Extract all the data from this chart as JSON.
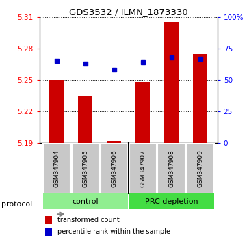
{
  "title": "GDS3532 / ILMN_1873330",
  "samples": [
    "GSM347904",
    "GSM347905",
    "GSM347906",
    "GSM347907",
    "GSM347908",
    "GSM347909"
  ],
  "groups": [
    "control",
    "control",
    "control",
    "PRC depletion",
    "PRC depletion",
    "PRC depletion"
  ],
  "red_values": [
    5.25,
    5.235,
    5.192,
    5.248,
    5.305,
    5.275
  ],
  "blue_values": [
    65,
    63,
    58,
    64,
    68,
    67
  ],
  "ylim_left": [
    5.19,
    5.31
  ],
  "ylim_right": [
    0,
    100
  ],
  "yticks_left": [
    5.19,
    5.22,
    5.25,
    5.28,
    5.31
  ],
  "yticks_right": [
    0,
    25,
    50,
    75,
    100
  ],
  "ytick_labels_left": [
    "5.19",
    "5.22",
    "5.25",
    "5.28",
    "5.31"
  ],
  "ytick_labels_right": [
    "0",
    "25",
    "50",
    "75",
    "100%"
  ],
  "baseline": 5.19,
  "color_control": "#90EE90",
  "color_prc": "#44DD44",
  "bar_color": "#CC0000",
  "dot_color": "#0000CC",
  "sample_box_color": "#C8C8C8",
  "label_red": "transformed count",
  "label_blue": "percentile rank within the sample",
  "protocol_label": "protocol",
  "control_label": "control",
  "prc_label": "PRC depletion",
  "bar_width": 0.5
}
